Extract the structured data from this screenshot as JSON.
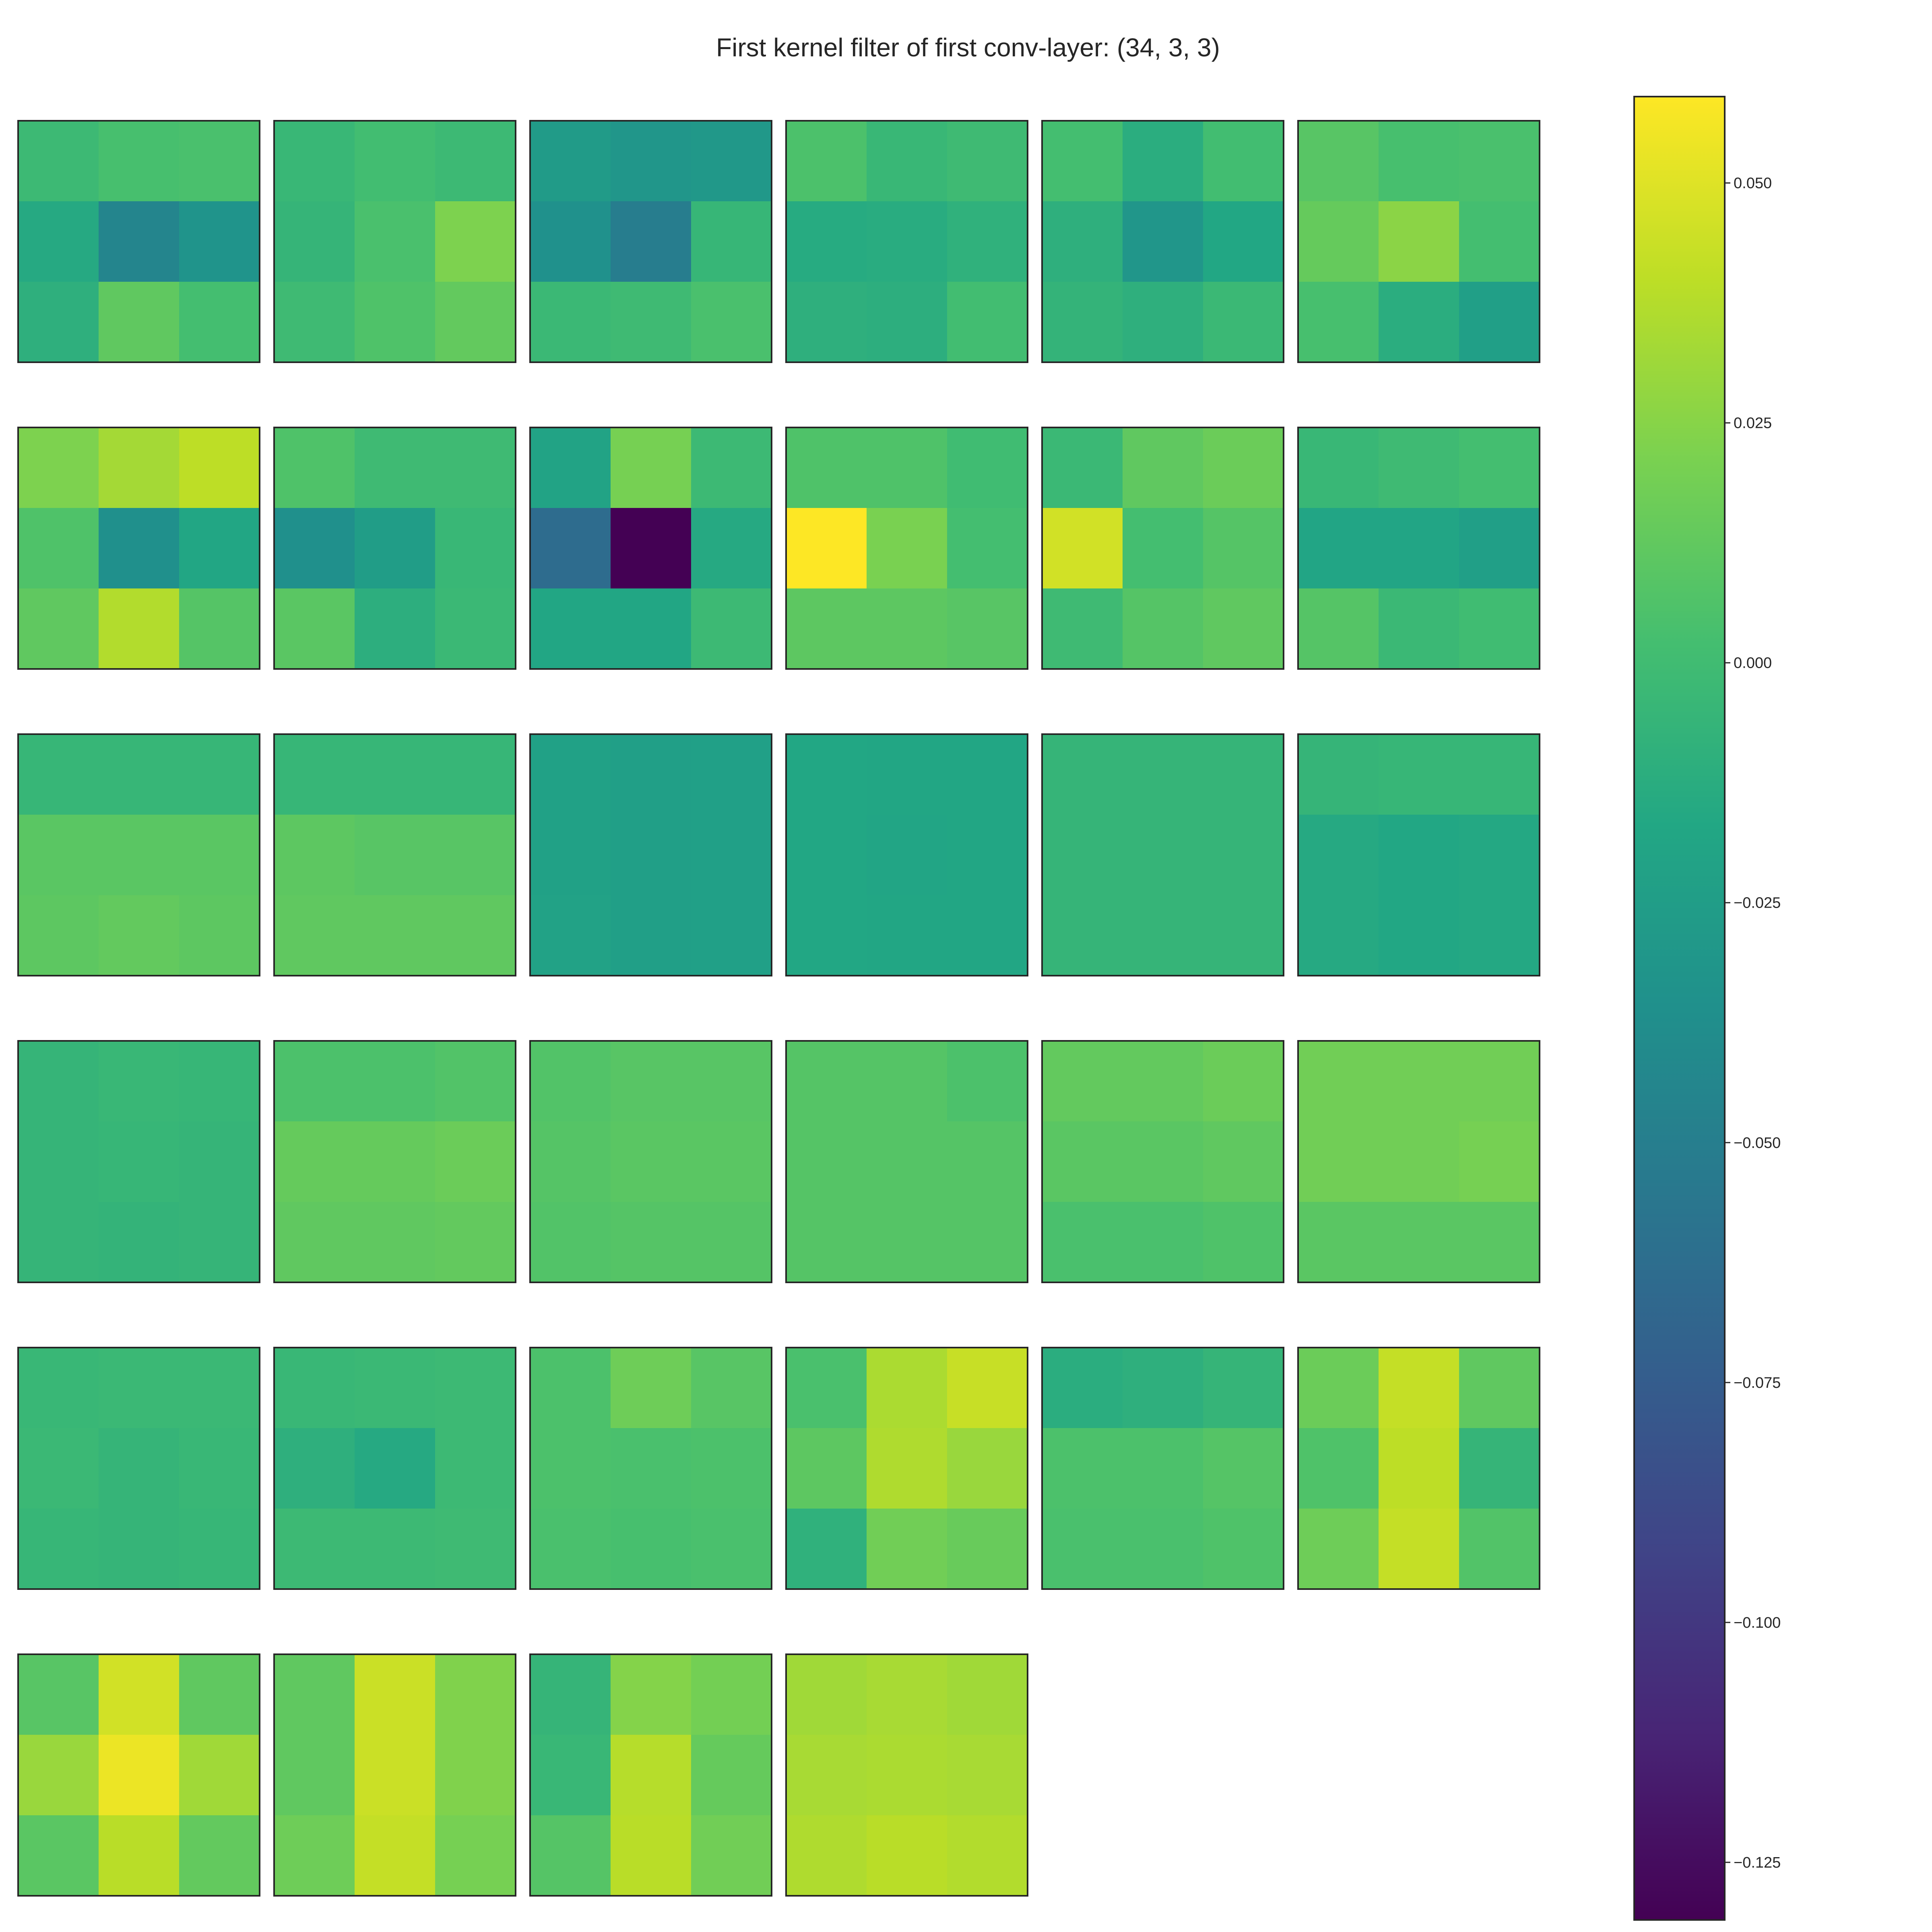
{
  "chart_data": {
    "type": "heatmap",
    "title": "First kernel filter of first conv-layer: (34, 3, 3)",
    "colormap": "viridis",
    "vmin": -0.131,
    "vmax": 0.059,
    "grid": {
      "rows": 6,
      "cols": 6,
      "panels_shown": 34
    },
    "colorbar": {
      "ticks": [
        0.05,
        0.025,
        0.0,
        -0.025,
        -0.05,
        -0.075,
        -0.1,
        -0.125
      ],
      "tick_labels": [
        "0.050",
        "0.025",
        "0.000",
        "−0.025",
        "−0.050",
        "−0.075",
        "−0.100",
        "−0.125"
      ]
    },
    "kernels": [
      [
        [
          -0.002,
          0.003,
          0.004
        ],
        [
          -0.015,
          -0.045,
          -0.033
        ],
        [
          -0.01,
          0.012,
          0.002
        ]
      ],
      [
        [
          -0.004,
          0.001,
          -0.002
        ],
        [
          -0.006,
          0.004,
          0.022
        ],
        [
          -0.001,
          0.006,
          0.013
        ]
      ],
      [
        [
          -0.027,
          -0.031,
          -0.029
        ],
        [
          -0.035,
          -0.051,
          -0.005
        ],
        [
          -0.003,
          -0.001,
          0.004
        ]
      ],
      [
        [
          0.005,
          -0.004,
          -0.001
        ],
        [
          -0.014,
          -0.013,
          -0.009
        ],
        [
          -0.01,
          -0.011,
          0.001
        ]
      ],
      [
        [
          0.002,
          -0.012,
          0.001
        ],
        [
          -0.01,
          -0.031,
          -0.017
        ],
        [
          -0.007,
          -0.01,
          -0.003
        ]
      ],
      [
        [
          0.009,
          0.003,
          0.004
        ],
        [
          0.014,
          0.026,
          0.002
        ],
        [
          0.003,
          -0.012,
          -0.024
        ]
      ],
      [
        [
          0.022,
          0.033,
          0.04
        ],
        [
          0.006,
          -0.036,
          -0.018
        ],
        [
          0.012,
          0.037,
          0.008
        ]
      ],
      [
        [
          0.006,
          -0.001,
          -0.001
        ],
        [
          -0.036,
          -0.025,
          -0.004
        ],
        [
          0.01,
          -0.011,
          -0.003
        ]
      ],
      [
        [
          -0.02,
          0.02,
          -0.002
        ],
        [
          -0.064,
          -0.131,
          -0.015
        ],
        [
          -0.018,
          -0.018,
          -0.002
        ]
      ],
      [
        [
          0.006,
          0.006,
          0.0
        ],
        [
          0.059,
          0.021,
          0.002
        ],
        [
          0.011,
          0.011,
          0.009
        ]
      ],
      [
        [
          -0.003,
          0.012,
          0.016
        ],
        [
          0.046,
          0.002,
          0.008
        ],
        [
          -0.001,
          0.008,
          0.012
        ]
      ],
      [
        [
          -0.004,
          -0.001,
          0.002
        ],
        [
          -0.019,
          -0.019,
          -0.024
        ],
        [
          0.008,
          -0.003,
          0.0
        ]
      ],
      [
        [
          -0.005,
          -0.005,
          -0.005
        ],
        [
          0.01,
          0.01,
          0.01
        ],
        [
          0.011,
          0.013,
          0.011
        ]
      ],
      [
        [
          -0.005,
          -0.005,
          -0.005
        ],
        [
          0.011,
          0.009,
          0.009
        ],
        [
          0.012,
          0.012,
          0.012
        ]
      ],
      [
        [
          -0.022,
          -0.024,
          -0.023
        ],
        [
          -0.022,
          -0.024,
          -0.023
        ],
        [
          -0.021,
          -0.024,
          -0.023
        ]
      ],
      [
        [
          -0.017,
          -0.018,
          -0.018
        ],
        [
          -0.017,
          -0.019,
          -0.018
        ],
        [
          -0.017,
          -0.018,
          -0.018
        ]
      ],
      [
        [
          -0.006,
          -0.006,
          -0.006
        ],
        [
          -0.006,
          -0.006,
          -0.006
        ],
        [
          -0.006,
          -0.006,
          -0.006
        ]
      ],
      [
        [
          -0.006,
          -0.005,
          -0.005
        ],
        [
          -0.015,
          -0.017,
          -0.016
        ],
        [
          -0.015,
          -0.017,
          -0.016
        ]
      ],
      [
        [
          -0.006,
          -0.004,
          -0.005
        ],
        [
          -0.006,
          -0.005,
          -0.006
        ],
        [
          -0.006,
          -0.007,
          -0.006
        ]
      ],
      [
        [
          0.005,
          0.005,
          0.007
        ],
        [
          0.014,
          0.014,
          0.016
        ],
        [
          0.012,
          0.012,
          0.013
        ]
      ],
      [
        [
          0.007,
          0.009,
          0.009
        ],
        [
          0.008,
          0.01,
          0.01
        ],
        [
          0.007,
          0.008,
          0.008
        ]
      ],
      [
        [
          0.008,
          0.008,
          0.005
        ],
        [
          0.008,
          0.008,
          0.008
        ],
        [
          0.008,
          0.008,
          0.008
        ]
      ],
      [
        [
          0.013,
          0.013,
          0.016
        ],
        [
          0.01,
          0.01,
          0.012
        ],
        [
          0.004,
          0.004,
          0.006
        ]
      ],
      [
        [
          0.018,
          0.018,
          0.018
        ],
        [
          0.018,
          0.018,
          0.02
        ],
        [
          0.01,
          0.01,
          0.01
        ]
      ],
      [
        [
          -0.004,
          -0.003,
          -0.003
        ],
        [
          -0.003,
          -0.006,
          -0.004
        ],
        [
          -0.005,
          -0.006,
          -0.005
        ]
      ],
      [
        [
          -0.004,
          -0.003,
          -0.002
        ],
        [
          -0.01,
          -0.015,
          -0.002
        ],
        [
          -0.002,
          -0.002,
          -0.001
        ]
      ],
      [
        [
          0.005,
          0.017,
          0.009
        ],
        [
          0.005,
          0.004,
          0.005
        ],
        [
          0.004,
          0.003,
          0.004
        ]
      ],
      [
        [
          0.004,
          0.035,
          0.043
        ],
        [
          0.011,
          0.036,
          0.03
        ],
        [
          -0.009,
          0.018,
          0.015
        ]
      ],
      [
        [
          -0.012,
          -0.01,
          -0.006
        ],
        [
          0.005,
          0.005,
          0.008
        ],
        [
          0.004,
          0.004,
          0.006
        ]
      ],
      [
        [
          0.016,
          0.042,
          0.012
        ],
        [
          0.006,
          0.04,
          -0.006
        ],
        [
          0.017,
          0.042,
          0.007
        ]
      ],
      [
        [
          0.009,
          0.046,
          0.012
        ],
        [
          0.03,
          0.054,
          0.032
        ],
        [
          0.01,
          0.039,
          0.013
        ]
      ],
      [
        [
          0.012,
          0.044,
          0.023
        ],
        [
          0.012,
          0.044,
          0.023
        ],
        [
          0.017,
          0.042,
          0.02
        ]
      ],
      [
        [
          -0.006,
          0.024,
          0.019
        ],
        [
          -0.004,
          0.038,
          0.014
        ],
        [
          0.008,
          0.039,
          0.018
        ]
      ],
      [
        [
          0.032,
          0.034,
          0.032
        ],
        [
          0.034,
          0.035,
          0.034
        ],
        [
          0.036,
          0.039,
          0.037
        ]
      ]
    ]
  }
}
